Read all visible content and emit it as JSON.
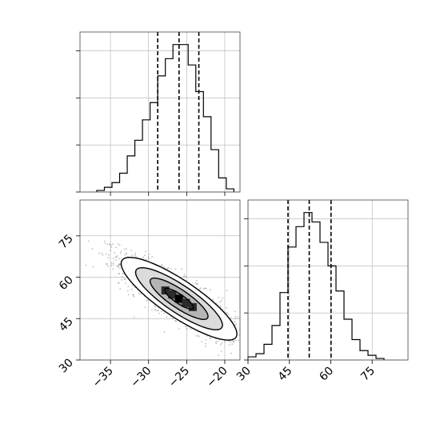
{
  "chart_data": {
    "type": "corner",
    "title": "",
    "parameters": [
      {
        "name": "",
        "range": [
          -39,
          -18
        ],
        "ticks": [
          -35,
          -30,
          -25,
          -20
        ],
        "tick_labels": [
          "−35",
          "−30",
          "−25",
          "−20"
        ],
        "quantiles": [
          -28.8,
          -26.0,
          -23.4
        ],
        "histogram": {
          "bin_edges": [
            -36.8,
            -35.8,
            -34.8,
            -33.8,
            -32.8,
            -31.8,
            -30.8,
            -29.8,
            -28.8,
            -27.8,
            -26.8,
            -25.8,
            -24.8,
            -23.8,
            -22.8,
            -21.8,
            -20.8,
            -19.8,
            -18.8
          ],
          "counts": [
            1,
            3,
            6,
            12,
            23,
            33,
            46,
            57,
            74,
            85,
            94,
            94,
            81,
            64,
            48,
            27,
            9,
            2
          ]
        }
      },
      {
        "name": "",
        "range": [
          30,
          88
        ],
        "ticks": [
          30,
          45,
          60,
          75
        ],
        "tick_labels": [
          "30",
          "45",
          "60",
          "75"
        ],
        "quantiles": [
          44.5,
          52.2,
          60.1
        ],
        "histogram": {
          "bin_edges": [
            30,
            32.9,
            35.8,
            38.7,
            41.6,
            44.5,
            47.4,
            50.3,
            53.2,
            56.1,
            59.0,
            61.9,
            64.8,
            67.7,
            70.6,
            73.5,
            76.4,
            79.3
          ],
          "counts": [
            2,
            4,
            10,
            22,
            43,
            72,
            85,
            94,
            88,
            75,
            60,
            44,
            26,
            13,
            6,
            3,
            1
          ]
        }
      }
    ],
    "density": {
      "mean": [
        -26.0,
        52.2
      ],
      "sigma": [
        3.8,
        7.5
      ],
      "correlation": -0.85,
      "contour_levels_sigma": [
        0.5,
        1.0,
        1.5,
        2.0
      ]
    },
    "hist_yticks": [
      0,
      30,
      60,
      90
    ],
    "hist_ymax": 102,
    "grid": true,
    "legend": "none"
  }
}
